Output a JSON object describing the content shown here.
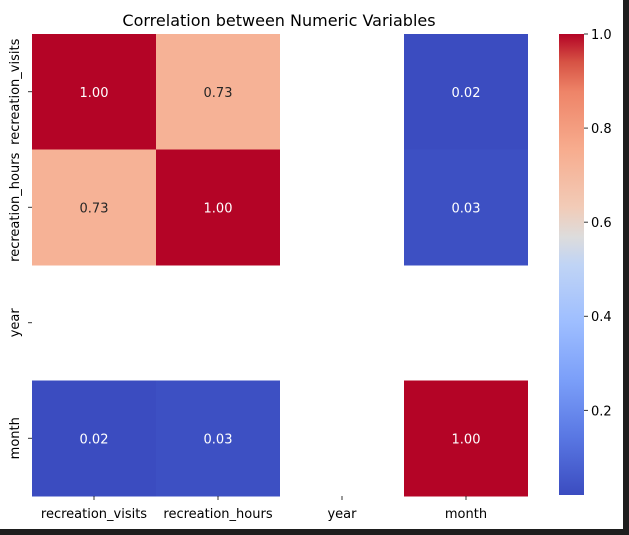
{
  "chart_data": {
    "type": "heatmap",
    "title": "Correlation between Numeric Variables",
    "categories": [
      "recreation_visits",
      "recreation_hours",
      "year",
      "month"
    ],
    "values": [
      [
        1.0,
        0.73,
        null,
        0.02
      ],
      [
        0.73,
        1.0,
        null,
        0.03
      ],
      [
        null,
        null,
        null,
        null
      ],
      [
        0.02,
        0.03,
        null,
        1.0
      ]
    ],
    "value_labels": [
      [
        "1.00",
        "0.73",
        "",
        "0.02"
      ],
      [
        "0.73",
        "1.00",
        "",
        "0.03"
      ],
      [
        "",
        "",
        "",
        ""
      ],
      [
        "0.02",
        "0.03",
        "",
        "1.00"
      ]
    ],
    "colormap": "coolwarm",
    "colorbar": {
      "vmin": 0.02,
      "vmax": 1.0,
      "ticks": [
        0.2,
        0.4,
        0.6,
        0.8,
        1.0
      ],
      "tick_labels": [
        "0.2",
        "0.4",
        "0.6",
        "0.8",
        "1.0"
      ]
    },
    "xlabel": "",
    "ylabel": ""
  }
}
